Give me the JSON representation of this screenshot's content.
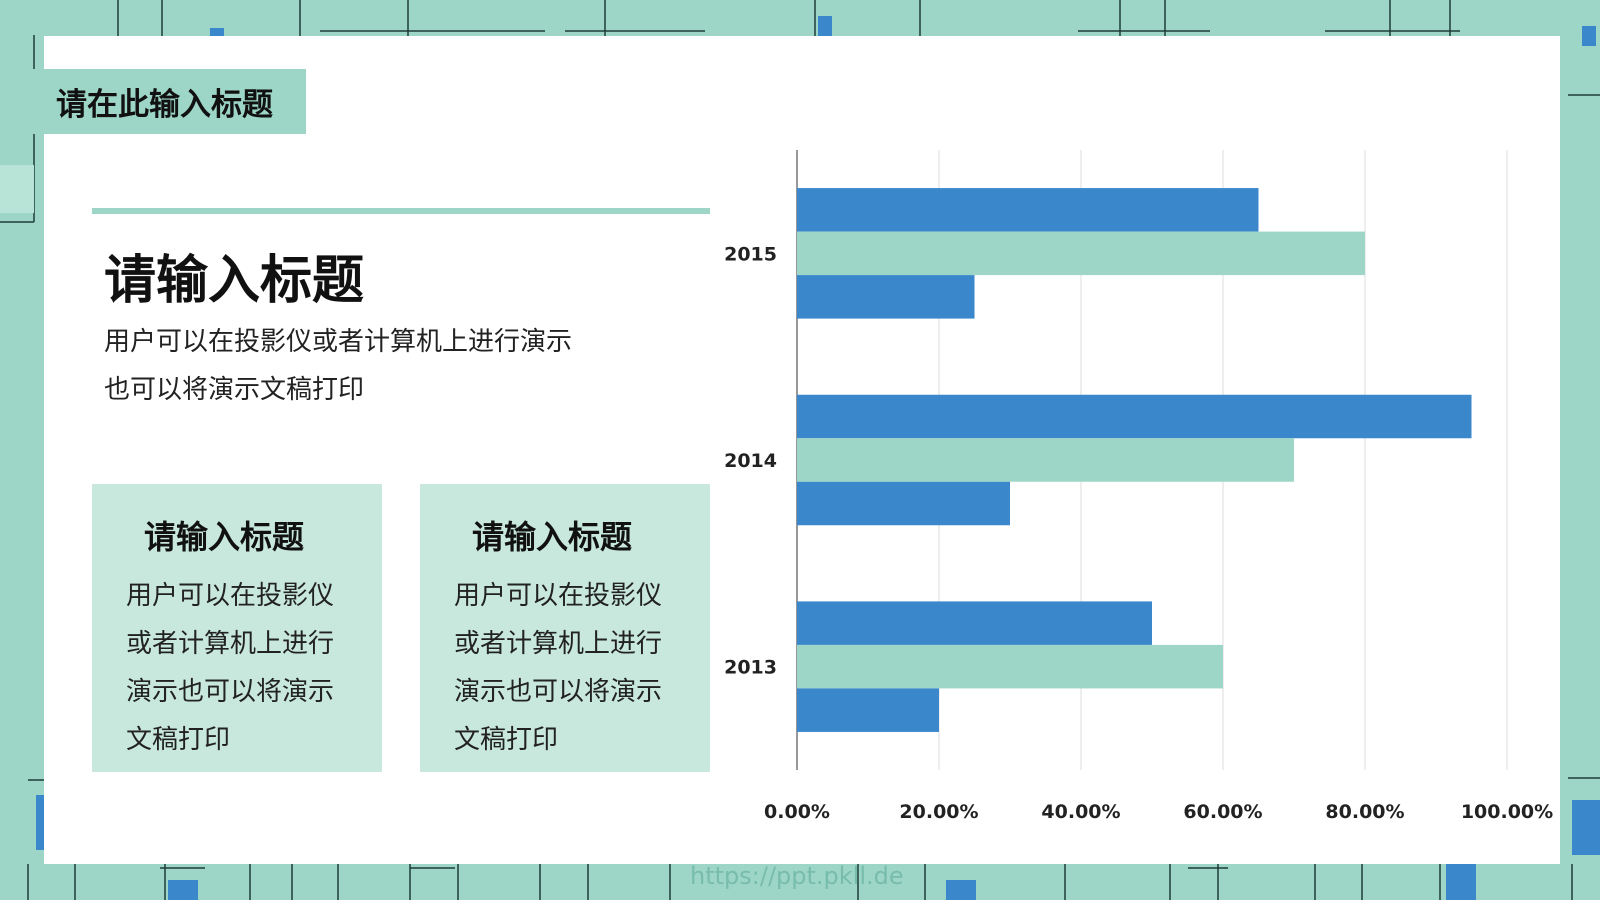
{
  "slide": {
    "tab_title": "请在此输入标题",
    "heading": "请输入标题",
    "text_line1": "用户可以在投影仪或者计算机上进行演示",
    "text_line2": "也可以将演示文稿打印",
    "boxes": [
      {
        "title": "请输入标题",
        "text": "用户可以在投影仪或者计算机上进行演示也可以将演示文稿打印"
      },
      {
        "title": "请输入标题",
        "text": "用户可以在投影仪或者计算机上进行演示也可以将演示文稿打印"
      }
    ],
    "watermark": "https://ppt.pkll.de"
  },
  "colors": {
    "background": "#9dd6c6",
    "blue": "#3a87cc",
    "green": "#9dd6c6",
    "box_fill": "#c8e8de",
    "accent_square": "#3a87cc"
  },
  "chart_data": {
    "type": "bar",
    "orientation": "horizontal",
    "categories": [
      "2013",
      "2014",
      "2015"
    ],
    "series": [
      {
        "color": "#3a87cc",
        "values": [
          0.5,
          0.95,
          0.65
        ]
      },
      {
        "color": "#9dd6c6",
        "values": [
          0.6,
          0.7,
          0.8
        ]
      },
      {
        "color": "#3a87cc",
        "values": [
          0.2,
          0.3,
          0.25
        ]
      }
    ],
    "xlim": [
      0,
      1
    ],
    "xticks": [
      "0.00%",
      "20.00%",
      "40.00%",
      "60.00%",
      "80.00%",
      "100.00%"
    ],
    "grid": "vertical",
    "legend": "none"
  }
}
